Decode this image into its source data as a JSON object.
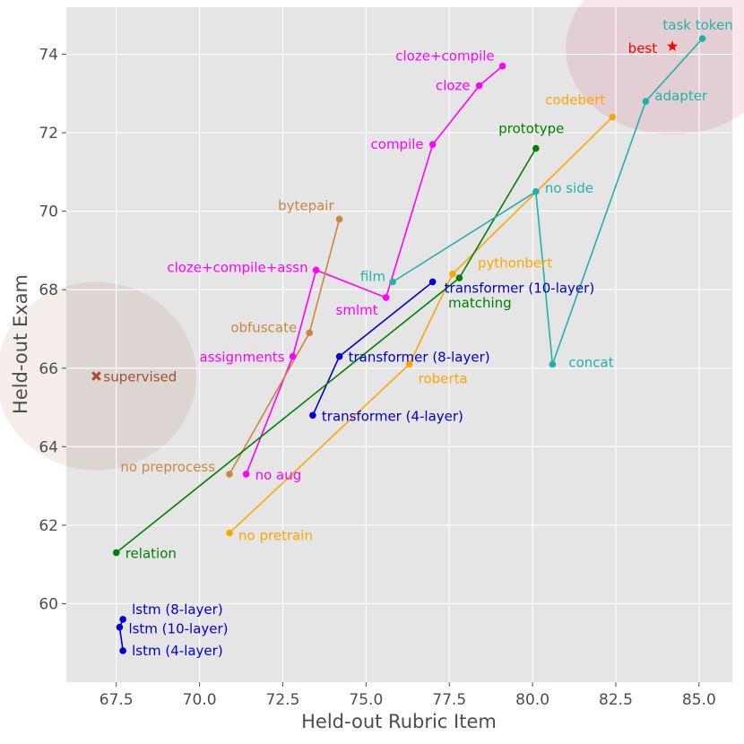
{
  "chart_data": {
    "type": "scatter",
    "xlabel": "Held-out Rubric Item",
    "ylabel": "Held-out Exam",
    "xlim": [
      66.0,
      86.0
    ],
    "ylim": [
      58.0,
      75.2
    ],
    "xticks": [
      "67.5",
      "70.0",
      "72.5",
      "75.0",
      "77.5",
      "80.0",
      "82.5",
      "85.0"
    ],
    "xtick_values": [
      67.5,
      70.0,
      72.5,
      75.0,
      77.5,
      80.0,
      82.5,
      85.0
    ],
    "yticks": [
      "60",
      "62",
      "64",
      "66",
      "68",
      "70",
      "72",
      "74"
    ],
    "ytick_values": [
      60,
      62,
      64,
      66,
      68,
      70,
      72,
      74
    ],
    "grid": true,
    "background": "#e5e5e5",
    "regions": [
      {
        "name": "supervised-region",
        "center": [
          66.9,
          65.8
        ],
        "radius": [
          3.0,
          2.4
        ],
        "color": "#a0522d"
      },
      {
        "name": "best-region",
        "center": [
          84.2,
          74.15
        ],
        "radius": [
          3.2,
          2.2
        ],
        "color": "#dc143c"
      }
    ],
    "series": [
      {
        "name": "magenta",
        "color": "#ff00ff",
        "points": [
          {
            "label": "no aug",
            "x": 71.4,
            "y": 63.3,
            "anchor": "start"
          },
          {
            "label": "assignments",
            "x": 72.8,
            "y": 66.3,
            "anchor": "end"
          },
          {
            "label": "cloze+compile+assn",
            "x": 73.5,
            "y": 68.5,
            "anchor": "end"
          },
          {
            "label": "smlmt",
            "x": 75.6,
            "y": 67.8,
            "anchor": "end"
          },
          {
            "label": "compile",
            "x": 77.0,
            "y": 71.7,
            "anchor": "end"
          },
          {
            "label": "cloze",
            "x": 78.4,
            "y": 73.2,
            "anchor": "end"
          },
          {
            "label": "cloze+compile",
            "x": 79.1,
            "y": 73.7,
            "anchor": "end"
          }
        ]
      },
      {
        "name": "peru",
        "color": "#cd853f",
        "points": [
          {
            "label": "no preprocess",
            "x": 70.9,
            "y": 63.3,
            "anchor": "end"
          },
          {
            "label": "obfuscate",
            "x": 73.3,
            "y": 66.9,
            "anchor": "end"
          },
          {
            "label": "bytepair",
            "x": 74.2,
            "y": 69.8,
            "anchor": "end"
          }
        ]
      },
      {
        "name": "blue-transformer",
        "color": "#0000cd",
        "points": [
          {
            "label": "transformer (4-layer)",
            "x": 73.4,
            "y": 64.8,
            "anchor": "start"
          },
          {
            "label": "transformer (8-layer)",
            "x": 74.2,
            "y": 66.3,
            "anchor": "start"
          },
          {
            "label": "transformer (10-layer)",
            "x": 77.0,
            "y": 68.2,
            "anchor": "start"
          }
        ]
      },
      {
        "name": "blue-lstm",
        "color": "#0000cd",
        "points": [
          {
            "label": "lstm (8-layer)",
            "x": 67.7,
            "y": 59.6,
            "anchor": "start"
          },
          {
            "label": "lstm (10-layer)",
            "x": 67.6,
            "y": 59.4,
            "anchor": "start"
          },
          {
            "label": "lstm (4-layer)",
            "x": 67.7,
            "y": 58.8,
            "anchor": "start"
          }
        ]
      },
      {
        "name": "orange",
        "color": "#ffa500",
        "points": [
          {
            "label": "no pretrain",
            "x": 70.9,
            "y": 61.8,
            "anchor": "start"
          },
          {
            "label": "roberta",
            "x": 76.3,
            "y": 66.1,
            "anchor": "start"
          },
          {
            "label": "pythonbert",
            "x": 77.6,
            "y": 68.4,
            "anchor": "start"
          },
          {
            "label": "codebert",
            "x": 82.4,
            "y": 72.4,
            "anchor": "end"
          }
        ]
      },
      {
        "name": "green",
        "color": "#008000",
        "points": [
          {
            "label": "relation",
            "x": 67.5,
            "y": 61.3,
            "anchor": "start"
          },
          {
            "label": "matching",
            "x": 77.8,
            "y": 68.3,
            "anchor": "middle"
          },
          {
            "label": "prototype",
            "x": 80.1,
            "y": 71.6,
            "anchor": "middle"
          }
        ]
      },
      {
        "name": "teal",
        "color": "#20b2aa",
        "points": [
          {
            "label": "film",
            "x": 75.8,
            "y": 68.2,
            "anchor": "end"
          },
          {
            "label": "no side",
            "x": 80.1,
            "y": 70.5,
            "anchor": "start"
          },
          {
            "label": "concat",
            "x": 80.6,
            "y": 66.1,
            "anchor": "start"
          },
          {
            "label": "adapter",
            "x": 83.4,
            "y": 72.8,
            "anchor": "start"
          },
          {
            "label": "task token",
            "x": 85.1,
            "y": 74.4,
            "anchor": "middle"
          }
        ]
      }
    ],
    "markers": [
      {
        "label": "supervised",
        "x": 66.9,
        "y": 65.8,
        "symbol": "x",
        "color": "#a0522d"
      },
      {
        "label": "best",
        "x": 84.2,
        "y": 74.2,
        "symbol": "star",
        "color": "#ff0000"
      }
    ]
  }
}
